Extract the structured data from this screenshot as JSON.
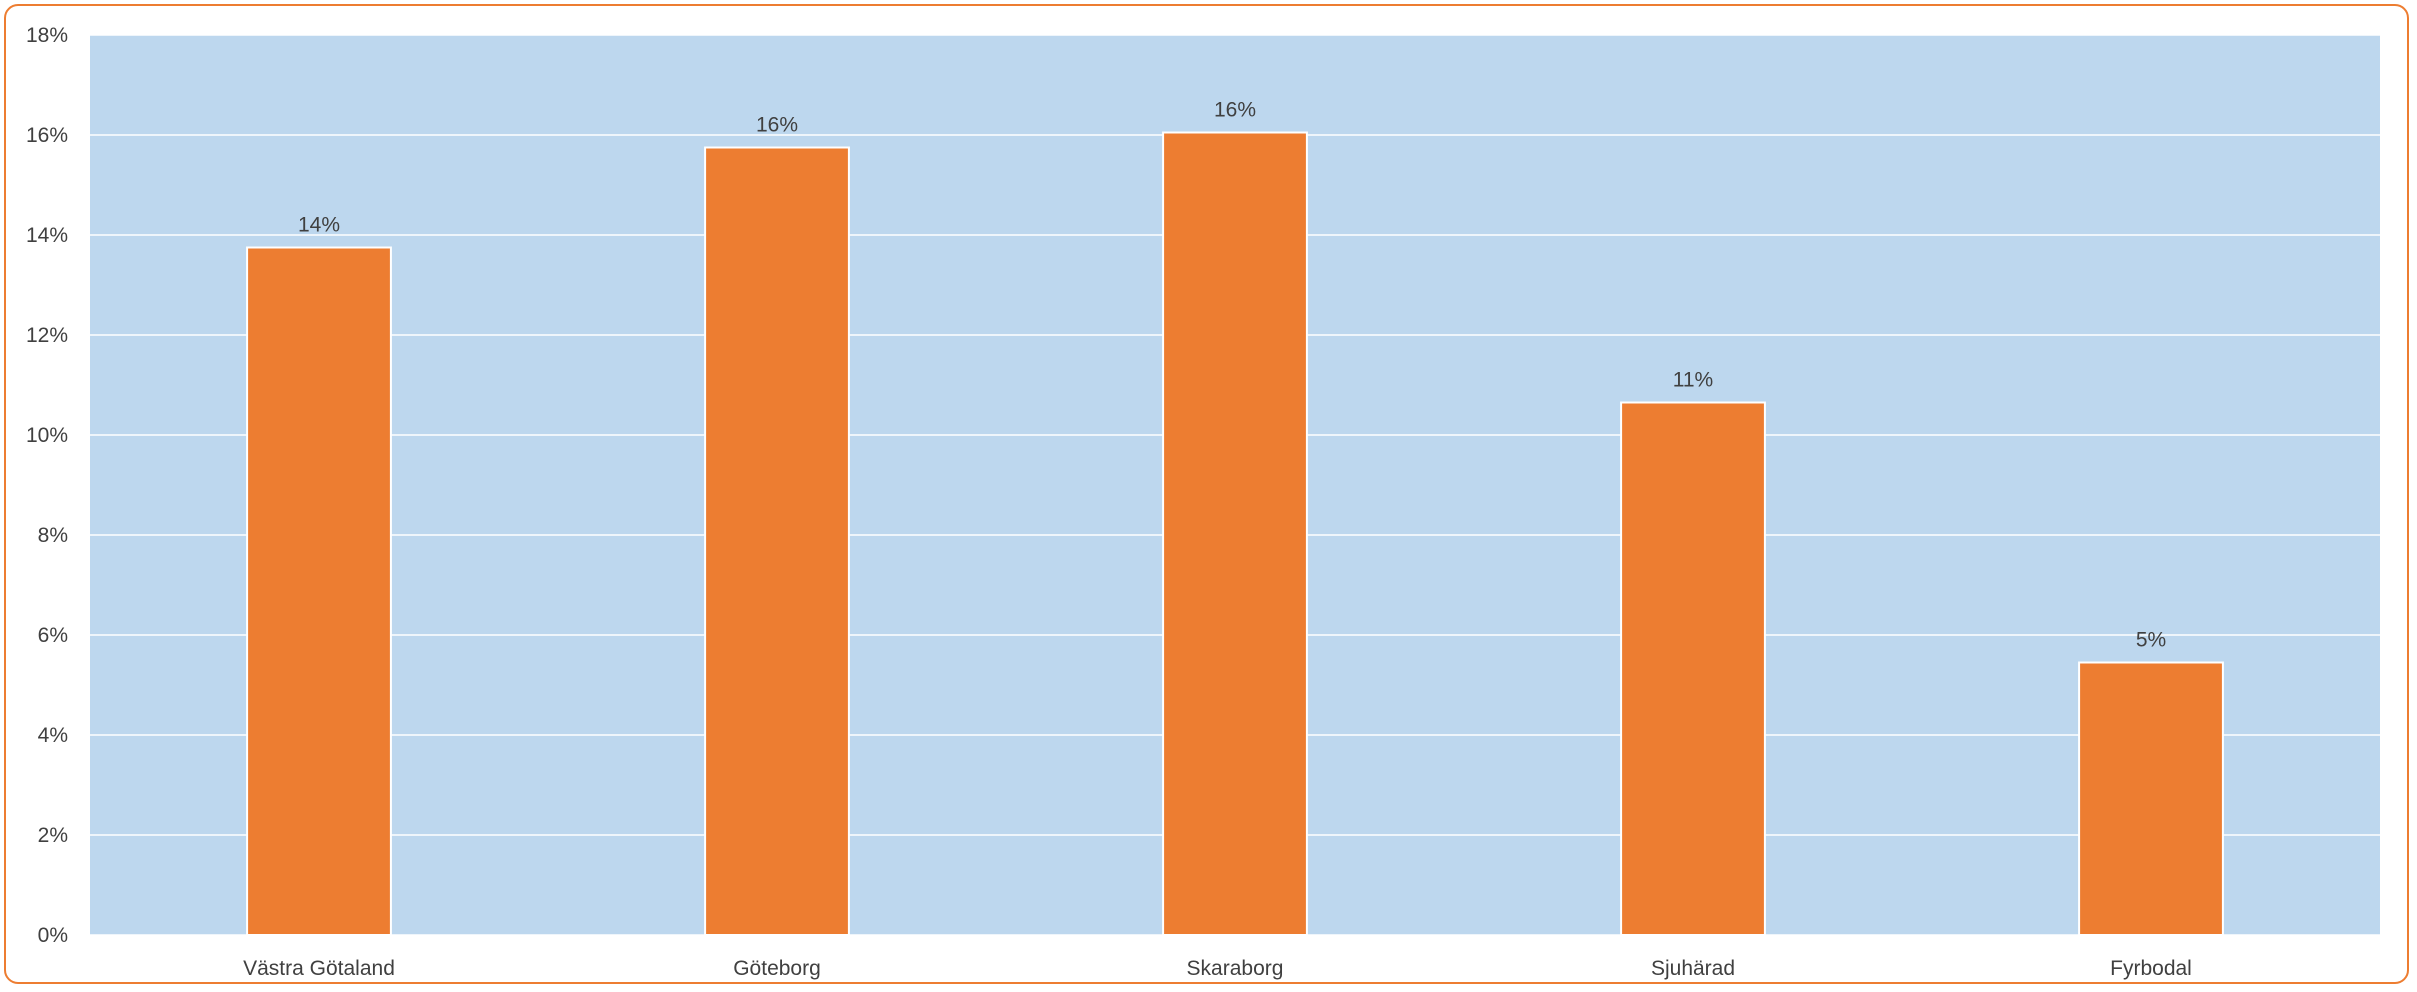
{
  "chart_data": {
    "type": "bar",
    "categories": [
      "Västra Götaland",
      "Göteborg",
      "Skaraborg",
      "Sjuhärad",
      "Fyrbodal"
    ],
    "values": [
      13.75,
      15.75,
      16.05,
      10.65,
      5.45
    ],
    "data_labels": [
      "14%",
      "16%",
      "16%",
      "11%",
      "5%"
    ],
    "y_ticks": [
      0,
      2,
      4,
      6,
      8,
      10,
      12,
      14,
      16,
      18
    ],
    "y_tick_labels": [
      "0%",
      "2%",
      "4%",
      "6%",
      "8%",
      "10%",
      "12%",
      "14%",
      "16%",
      "18%"
    ],
    "ylim": [
      0,
      18
    ],
    "title": "",
    "xlabel": "",
    "ylabel": "",
    "grid": true,
    "legend": "none",
    "colors": {
      "bar": "#ED7D31",
      "plot_background": "#BDD7EE",
      "gridline": "#FFFFFF",
      "frame_border": "#ED7D31",
      "text": "#404040"
    }
  }
}
